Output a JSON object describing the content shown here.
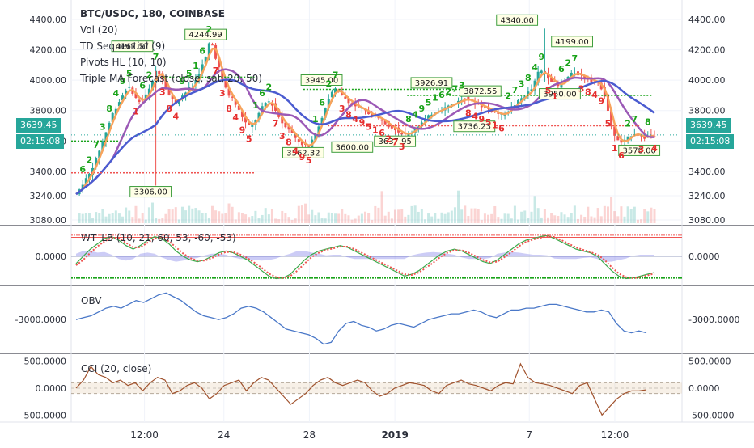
{
  "header": {
    "symbol": "BTC/USDC, 180, COINBASE",
    "indicators": [
      "Vol (20)",
      "TD Sequential (9)",
      "Pivots HL (10, 10)",
      "Triple MA Forecast (close, sat, 20, 50)"
    ]
  },
  "price_tag": {
    "value": "3639.45",
    "countdown": "02:15:08"
  },
  "colors": {
    "bull": "#26a69a",
    "bear": "#ef5350",
    "ma_fast": "#f7a35c",
    "ma_mid": "#9b59b6",
    "ma_slow": "#4a5bd0",
    "obv": "#4a78c8",
    "cci": "#a0522d",
    "td_green": "#1aa31a",
    "td_red": "#e52d2d"
  },
  "chart_data": [
    {
      "type": "candlestick",
      "pane": "price",
      "title": "BTC/USDC, 180, COINBASE",
      "ylim": [
        3080,
        4480
      ],
      "yticks": [
        3080,
        3240,
        3400,
        3600,
        3800,
        4000,
        4200,
        4400
      ],
      "ytick_labels": [
        "3080.00",
        "3240.00",
        "3400.00",
        "3600.00",
        "3800.00",
        "4000.00",
        "4200.00",
        "4400.00"
      ],
      "xticks": [
        "12:00",
        "24",
        "28",
        "2019",
        "7",
        "12:00"
      ],
      "close_path": [
        3250,
        3280,
        3320,
        3350,
        3380,
        3430,
        3480,
        3540,
        3600,
        3660,
        3720,
        3780,
        3820,
        3860,
        3900,
        3940,
        3950,
        3920,
        3880,
        3860,
        3870,
        3900,
        3940,
        3990,
        4060,
        4050,
        4010,
        3950,
        3900,
        3870,
        3850,
        3880,
        3900,
        3920,
        3950,
        3960,
        4000,
        4050,
        4100,
        4150,
        4240,
        4230,
        4150,
        4080,
        4000,
        3950,
        3900,
        3880,
        3840,
        3800,
        3760,
        3720,
        3700,
        3710,
        3740,
        3780,
        3820,
        3850,
        3860,
        3840,
        3800,
        3760,
        3720,
        3700,
        3680,
        3650,
        3620,
        3600,
        3580,
        3570,
        3560,
        3600,
        3650,
        3700,
        3760,
        3820,
        3880,
        3920,
        3940,
        3930,
        3900,
        3880,
        3860,
        3850,
        3830,
        3820,
        3810,
        3800,
        3780,
        3770,
        3760,
        3750,
        3740,
        3720,
        3700,
        3690,
        3680,
        3660,
        3650,
        3640,
        3650,
        3660,
        3680,
        3700,
        3720,
        3740,
        3760,
        3780,
        3790,
        3800,
        3810,
        3820,
        3830,
        3840,
        3850,
        3860,
        3870,
        3880,
        3870,
        3860,
        3850,
        3840,
        3830,
        3820,
        3810,
        3800,
        3790,
        3780,
        3770,
        3780,
        3800,
        3820,
        3840,
        3860,
        3880,
        3900,
        3920,
        3940,
        3990,
        4050,
        4060,
        4040,
        4020,
        4000,
        3980,
        3960,
        3980,
        4000,
        4020,
        4040,
        4050,
        4040,
        4030,
        4020,
        4010,
        4000,
        3990,
        3980,
        3950,
        3900,
        3800,
        3700,
        3640,
        3600,
        3590,
        3600,
        3620,
        3640,
        3650,
        3640,
        3630,
        3620,
        3630,
        3640,
        3639
      ],
      "pivot_highs": [
        [
          "4167.57",
          "4167.57"
        ],
        [
          "4244.99",
          "4244.99"
        ],
        [
          "3945.00",
          "3945.00"
        ],
        [
          "3926.91",
          "3926.91"
        ],
        [
          "3872.55",
          "3872.55"
        ],
        [
          "4340.00",
          "4340.00"
        ],
        [
          "4199.00",
          "4199.00"
        ]
      ],
      "pivot_lows": [
        "3306.00",
        "3562.32",
        "3600.00",
        "3637.95",
        "3736.23",
        "3950.00",
        "3578.00"
      ],
      "volume_label": "Vol (20)"
    },
    {
      "type": "line",
      "pane": "oscillator",
      "title": "WT_LB (10, 21, 60, 53, -60, -53)",
      "ytick_labels": [
        "0.0000"
      ],
      "ylim": [
        -70,
        70
      ],
      "series": [
        {
          "name": "WT1",
          "values": [
            -20,
            0,
            20,
            35,
            50,
            55,
            45,
            30,
            20,
            30,
            45,
            55,
            50,
            35,
            15,
            0,
            -10,
            -15,
            -10,
            0,
            10,
            15,
            10,
            0,
            -10,
            -25,
            -40,
            -55,
            -62,
            -60,
            -50,
            -30,
            -10,
            5,
            15,
            20,
            25,
            30,
            25,
            15,
            5,
            -5,
            -15,
            -25,
            -35,
            -45,
            -55,
            -50,
            -40,
            -25,
            -10,
            5,
            15,
            20,
            15,
            5,
            -5,
            -15,
            -20,
            -10,
            5,
            20,
            35,
            45,
            50,
            55,
            58,
            50,
            40,
            30,
            20,
            15,
            10,
            0,
            -20,
            -40,
            -55,
            -62,
            -60,
            -55,
            -50,
            -45
          ]
        },
        {
          "name": "WT2",
          "values": [
            -25,
            -10,
            10,
            28,
            42,
            52,
            50,
            38,
            25,
            25,
            38,
            50,
            52,
            42,
            25,
            8,
            -5,
            -12,
            -12,
            -5,
            5,
            12,
            12,
            5,
            -5,
            -18,
            -32,
            -48,
            -58,
            -61,
            -55,
            -40,
            -20,
            -2,
            10,
            18,
            22,
            27,
            27,
            20,
            10,
            0,
            -10,
            -20,
            -30,
            -40,
            -50,
            -52,
            -45,
            -32,
            -18,
            -2,
            10,
            17,
            17,
            10,
            0,
            -10,
            -17,
            -15,
            -2,
            12,
            28,
            40,
            47,
            52,
            56,
            54,
            45,
            35,
            25,
            18,
            12,
            5,
            -10,
            -30,
            -48,
            -58,
            -61,
            -58,
            -53,
            -48
          ]
        }
      ]
    },
    {
      "type": "line",
      "pane": "obv",
      "title": "OBV",
      "ytick_labels": [
        "-3000.0000"
      ],
      "series": [
        {
          "name": "OBV",
          "values": [
            -3000,
            -2950,
            -2900,
            -2800,
            -2700,
            -2650,
            -2700,
            -2600,
            -2500,
            -2550,
            -2450,
            -2350,
            -2300,
            -2400,
            -2500,
            -2650,
            -2800,
            -2900,
            -2950,
            -3000,
            -2950,
            -2850,
            -2700,
            -2650,
            -2700,
            -2800,
            -2950,
            -3100,
            -3250,
            -3300,
            -3350,
            -3400,
            -3500,
            -3650,
            -3600,
            -3300,
            -3100,
            -3050,
            -3150,
            -3200,
            -3300,
            -3250,
            -3150,
            -3100,
            -3150,
            -3200,
            -3100,
            -3000,
            -2950,
            -2900,
            -2850,
            -2850,
            -2800,
            -2750,
            -2800,
            -2900,
            -2950,
            -2850,
            -2750,
            -2750,
            -2700,
            -2700,
            -2650,
            -2600,
            -2600,
            -2650,
            -2700,
            -2750,
            -2800,
            -2800,
            -2750,
            -2800,
            -3100,
            -3300,
            -3350,
            -3300,
            -3350
          ]
        }
      ]
    },
    {
      "type": "line",
      "pane": "cci",
      "title": "CCI (20, close)",
      "ylim": [
        -600,
        600
      ],
      "yticks": [
        -500,
        0,
        500
      ],
      "ytick_labels": [
        "-500.0000",
        "0.0000",
        "500.0000"
      ],
      "bands": [
        100,
        -100
      ],
      "series": [
        {
          "name": "CCI",
          "values": [
            0,
            150,
            400,
            250,
            200,
            100,
            150,
            50,
            100,
            -50,
            100,
            200,
            150,
            -100,
            -50,
            50,
            100,
            0,
            -200,
            -100,
            50,
            100,
            150,
            -50,
            100,
            200,
            150,
            0,
            -150,
            -300,
            -200,
            -100,
            50,
            150,
            200,
            100,
            50,
            100,
            150,
            100,
            -50,
            -150,
            -100,
            0,
            50,
            100,
            80,
            50,
            -50,
            -100,
            50,
            100,
            150,
            80,
            50,
            0,
            -50,
            50,
            100,
            80,
            450,
            200,
            100,
            80,
            50,
            0,
            -50,
            -100,
            50,
            100,
            -200,
            -500,
            -350,
            -200,
            -100,
            -50,
            -50,
            -30
          ]
        }
      ]
    }
  ]
}
